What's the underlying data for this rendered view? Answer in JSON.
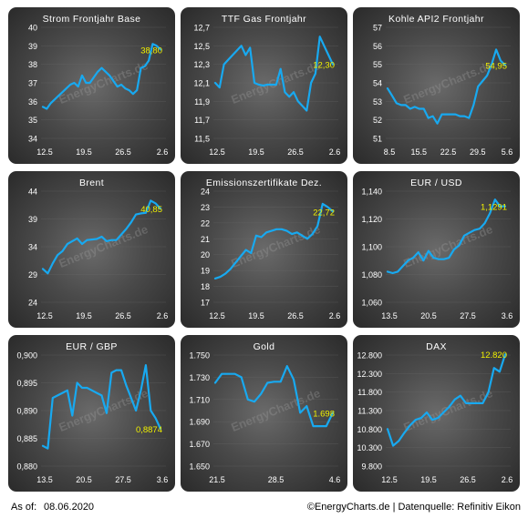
{
  "footer": {
    "as_of_label": "As of:",
    "as_of_date": "08.06.2020",
    "credit": "©EnergyCharts.de | Datenquelle: Refinitiv Eikon"
  },
  "watermark": "EnergyCharts.de",
  "colors": {
    "line": "#18a9f0",
    "last_value": "#f0f000",
    "text": "#ffffff",
    "grid": "#6e6e6e"
  },
  "chart_data": [
    {
      "type": "line",
      "title": "Strom Frontjahr Base",
      "yticks": [
        "40",
        "39",
        "38",
        "37",
        "36",
        "35",
        "34"
      ],
      "ylim": [
        34,
        40
      ],
      "xticks": [
        "12.5",
        "19.5",
        "26.5",
        "2.6"
      ],
      "y": [
        35.7,
        35.6,
        35.9,
        36.1,
        36.3,
        36.5,
        36.7,
        36.9,
        37.0,
        36.8,
        37.4,
        37.0,
        37.0,
        37.3,
        37.6,
        37.8,
        37.6,
        37.4,
        37.1,
        36.8,
        36.9,
        36.7,
        36.6,
        36.4,
        36.6,
        37.8,
        37.9,
        38.2,
        39.1,
        39.0,
        38.8
      ],
      "last_label": "38,80"
    },
    {
      "type": "line",
      "title": "TTF Gas Frontjahr",
      "yticks": [
        "12,7",
        "12,5",
        "12,3",
        "12,1",
        "11,9",
        "11,7",
        "11,5"
      ],
      "ylim": [
        11.5,
        12.7
      ],
      "xticks": [
        "12.5",
        "19.5",
        "26.5",
        "2.6"
      ],
      "y": [
        12.1,
        12.05,
        12.3,
        12.35,
        12.4,
        12.45,
        12.5,
        12.4,
        12.48,
        12.1,
        12.08,
        12.07,
        12.08,
        12.08,
        12.08,
        12.25,
        12.0,
        11.95,
        12.0,
        11.9,
        11.85,
        11.8,
        12.1,
        12.2,
        12.6,
        12.5,
        12.4,
        12.3
      ],
      "last_label": "12,30"
    },
    {
      "type": "line",
      "title": "Kohle API2 Frontjahr",
      "yticks": [
        "57",
        "56",
        "55",
        "54",
        "53",
        "52",
        "51"
      ],
      "ylim": [
        51,
        57
      ],
      "xticks": [
        "8.5",
        "15.5",
        "22.5",
        "29.5",
        "5.6"
      ],
      "y": [
        53.7,
        53.3,
        52.9,
        52.8,
        52.8,
        52.6,
        52.7,
        52.6,
        52.6,
        52.1,
        52.2,
        51.8,
        52.3,
        52.3,
        52.3,
        52.3,
        52.2,
        52.2,
        52.1,
        52.8,
        53.8,
        54.1,
        54.4,
        55.0,
        55.8,
        55.2,
        54.95
      ],
      "last_label": "54,95"
    },
    {
      "type": "line",
      "title": "Brent",
      "yticks": [
        "44",
        "39",
        "34",
        "29",
        "24"
      ],
      "ylim": [
        24,
        44
      ],
      "xticks": [
        "12.5",
        "19.5",
        "26.5",
        "2.6"
      ],
      "y": [
        30.0,
        29.2,
        31.0,
        32.5,
        33.2,
        34.5,
        35.0,
        35.5,
        34.5,
        35.2,
        35.3,
        35.4,
        35.8,
        35.0,
        35.2,
        35.2,
        36.2,
        37.2,
        38.4,
        39.8,
        40.0,
        40.1,
        42.3,
        41.8,
        40.85
      ],
      "last_label": "40,85"
    },
    {
      "type": "line",
      "title": "Emissionszertifikate Dez.",
      "yticks": [
        "24",
        "23",
        "22",
        "21",
        "20",
        "19",
        "18",
        "17"
      ],
      "ylim": [
        17,
        24
      ],
      "xticks": [
        "12.5",
        "19.5",
        "26.5",
        "2.6"
      ],
      "y": [
        18.5,
        18.6,
        18.8,
        19.1,
        19.5,
        19.9,
        20.3,
        20.1,
        21.2,
        21.1,
        21.4,
        21.5,
        21.6,
        21.6,
        21.5,
        21.3,
        21.4,
        21.2,
        21.0,
        21.3,
        21.8,
        23.2,
        23.0,
        22.72
      ],
      "last_label": "22,72"
    },
    {
      "type": "line",
      "title": "EUR / USD",
      "yticks": [
        "1,140",
        "1,120",
        "1,100",
        "1,080",
        "1,060"
      ],
      "ylim": [
        1.06,
        1.14
      ],
      "xticks": [
        "13.5",
        "20.5",
        "27.5",
        "3.6"
      ],
      "y": [
        1.082,
        1.081,
        1.082,
        1.086,
        1.09,
        1.092,
        1.096,
        1.09,
        1.097,
        1.092,
        1.091,
        1.091,
        1.092,
        1.098,
        1.101,
        1.108,
        1.11,
        1.112,
        1.113,
        1.117,
        1.124,
        1.134,
        1.129,
        1.1291
      ],
      "last_label": "1,1291"
    },
    {
      "type": "line",
      "title": "EUR / GBP",
      "yticks": [
        "0,900",
        "0,895",
        "0,890",
        "0,885",
        "0,880"
      ],
      "ylim": [
        0.88,
        0.902
      ],
      "xticks": [
        "13.5",
        "20.5",
        "27.5",
        "3.6"
      ],
      "y": [
        0.884,
        0.8835,
        0.8935,
        0.894,
        0.8945,
        0.895,
        0.89,
        0.8965,
        0.8955,
        0.8955,
        0.895,
        0.8945,
        0.894,
        0.8905,
        0.8985,
        0.899,
        0.899,
        0.896,
        0.8935,
        0.891,
        0.895,
        0.9,
        0.891,
        0.8895,
        0.8874
      ],
      "last_label": "0,8874"
    },
    {
      "type": "line",
      "title": "Gold",
      "yticks": [
        "1.750",
        "1.730",
        "1.710",
        "1.690",
        "1.670",
        "1.650"
      ],
      "ylim": [
        1650,
        1750
      ],
      "xticks": [
        "21.5",
        "28.5",
        "4.6"
      ],
      "y": [
        1725,
        1733,
        1733,
        1733,
        1730,
        1710,
        1708,
        1715,
        1725,
        1726,
        1726,
        1740,
        1728,
        1698,
        1704,
        1686,
        1686,
        1686,
        1698
      ],
      "last_label": "1.698"
    },
    {
      "type": "line",
      "title": "DAX",
      "yticks": [
        "12.800",
        "12.300",
        "11.800",
        "11.300",
        "10.800",
        "10.300",
        "9.800"
      ],
      "ylim": [
        9800,
        12800
      ],
      "xticks": [
        "12.5",
        "19.5",
        "26.5",
        "2.6"
      ],
      "y": [
        10800,
        10350,
        10480,
        10700,
        10900,
        11050,
        11100,
        11250,
        11050,
        11100,
        11250,
        11400,
        11600,
        11700,
        11500,
        11500,
        11500,
        11500,
        11800,
        12450,
        12350,
        12820
      ],
      "last_label": "12.820"
    }
  ]
}
